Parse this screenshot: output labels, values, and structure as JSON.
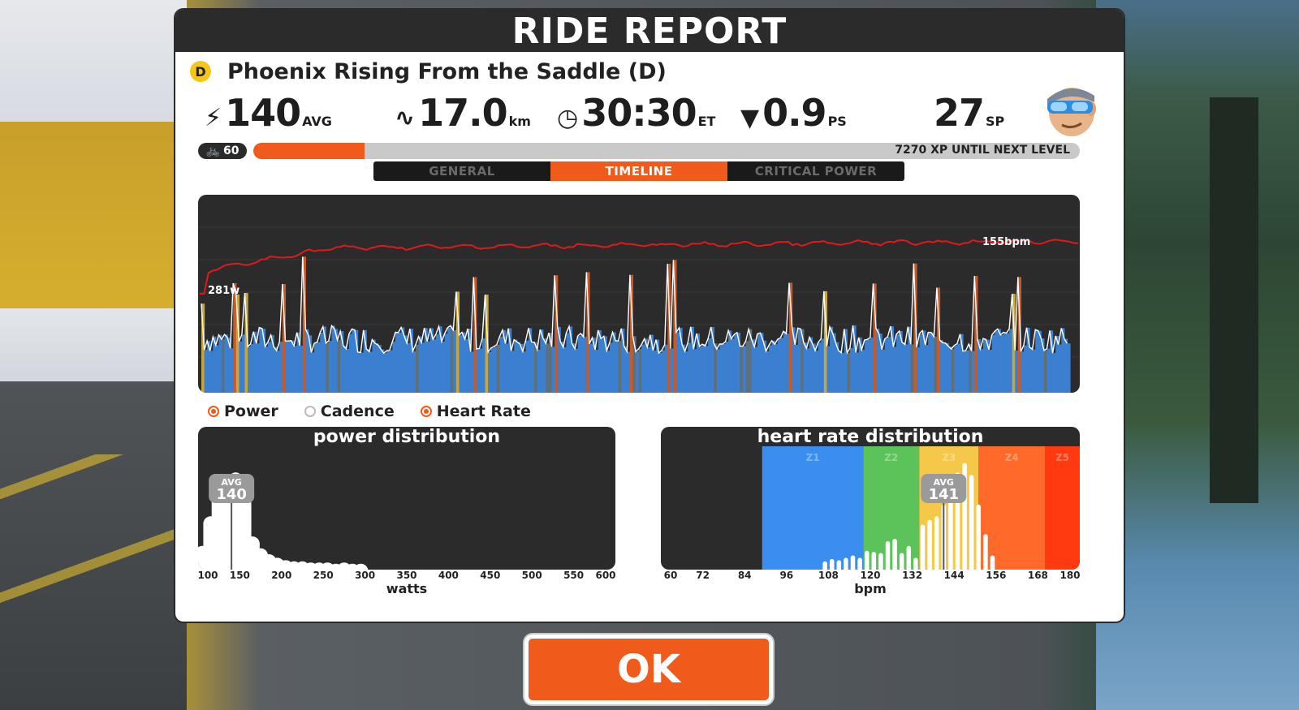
{
  "title": "RIDE REPORT",
  "route": {
    "category": "D",
    "name": "Phoenix Rising From the Saddle (D)"
  },
  "stats": {
    "power": {
      "icon": "bolt-icon",
      "value": "140",
      "unit": "AVG"
    },
    "distance": {
      "icon": "route-icon",
      "value": "17.0",
      "unit": "km"
    },
    "time": {
      "icon": "clock-icon",
      "value": "30:30",
      "unit": "ET"
    },
    "pizza": {
      "icon": "pizza-icon",
      "value": "0.9",
      "unit": "PS"
    },
    "sport_points": {
      "value": "27",
      "unit": "SP"
    }
  },
  "level": {
    "icon": "bike-icon",
    "value": "60"
  },
  "xp": {
    "progress": 0.135,
    "text": "7270 XP UNTIL NEXT LEVEL"
  },
  "tabs": [
    {
      "label": "GENERAL",
      "active": false
    },
    {
      "label": "TIMELINE",
      "active": true
    },
    {
      "label": "CRITICAL POWER",
      "active": false
    }
  ],
  "timeline": {
    "power_max_label": "281w",
    "hr_max_label": "155bpm"
  },
  "legend": [
    {
      "label": "Power",
      "on": true
    },
    {
      "label": "Cadence",
      "on": false
    },
    {
      "label": "Heart Rate",
      "on": true
    }
  ],
  "power_distribution": {
    "title": "power distribution",
    "avg_label": "AVG",
    "avg_value": "140",
    "x_ticks": [
      "100",
      "150",
      "200",
      "250",
      "300",
      "350",
      "400",
      "450",
      "500",
      "550",
      "600"
    ],
    "xlabel": "watts"
  },
  "hr_distribution": {
    "title": "heart rate distribution",
    "avg_label": "AVG",
    "avg_value": "141",
    "zones": [
      "Z1",
      "Z2",
      "Z3",
      "Z4",
      "Z5"
    ],
    "x_ticks": [
      "60",
      "72",
      "84",
      "96",
      "108",
      "120",
      "132",
      "144",
      "156",
      "168",
      "180"
    ],
    "xlabel": "bpm"
  },
  "ok_label": "OK",
  "colors": {
    "accent": "#f05a1a",
    "panel": "#2b2b2b",
    "z1": "#3a8ef0",
    "z2": "#5cc25a",
    "z3": "#f5c84a",
    "z4": "#ff6a2a",
    "z5": "#ff3a10"
  },
  "chart_data": [
    {
      "type": "area",
      "title": "",
      "series": [
        {
          "name": "Power"
        },
        {
          "name": "Heart Rate"
        }
      ],
      "annotations": [
        "281w",
        "155bpm"
      ]
    },
    {
      "type": "bar",
      "title": "power distribution",
      "xlabel": "watts",
      "xlim": [
        100,
        600
      ],
      "x": [
        105,
        115,
        125,
        135,
        145,
        155,
        165,
        175,
        185,
        195,
        205,
        215,
        225,
        235,
        245,
        255,
        265,
        275,
        285,
        295
      ],
      "values": [
        0.2,
        0.45,
        0.65,
        0.8,
        0.82,
        0.62,
        0.28,
        0.18,
        0.13,
        0.1,
        0.08,
        0.07,
        0.07,
        0.06,
        0.06,
        0.06,
        0.05,
        0.06,
        0.05,
        0.05
      ],
      "avg": 140
    },
    {
      "type": "bar",
      "title": "heart rate distribution",
      "xlabel": "bpm",
      "xlim": [
        60,
        180
      ],
      "zones": [
        {
          "name": "Z1",
          "from": 89,
          "to": 118
        },
        {
          "name": "Z2",
          "from": 118,
          "to": 134
        },
        {
          "name": "Z3",
          "from": 134,
          "to": 151
        },
        {
          "name": "Z4",
          "from": 151,
          "to": 170
        },
        {
          "name": "Z5",
          "from": 170,
          "to": 180
        }
      ],
      "x": [
        107,
        109,
        111,
        113,
        115,
        117,
        119,
        121,
        123,
        125,
        127,
        129,
        131,
        133,
        135,
        137,
        139,
        141,
        143,
        145,
        147,
        149,
        151,
        153,
        155
      ],
      "values": [
        0.07,
        0.09,
        0.08,
        0.1,
        0.12,
        0.1,
        0.16,
        0.15,
        0.14,
        0.24,
        0.26,
        0.14,
        0.2,
        0.1,
        0.38,
        0.42,
        0.45,
        0.55,
        0.7,
        0.82,
        0.9,
        0.8,
        0.55,
        0.3,
        0.12
      ],
      "avg": 141
    }
  ]
}
